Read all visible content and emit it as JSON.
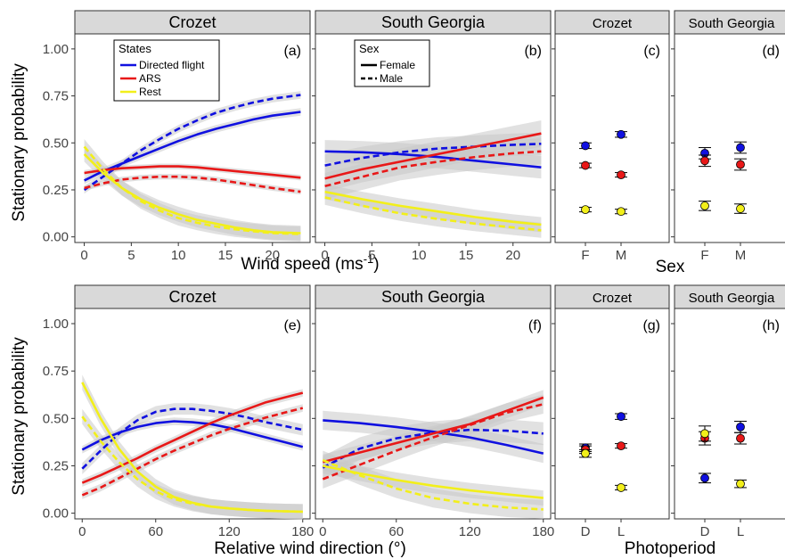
{
  "figure": {
    "ylabel": "Stationary probability",
    "x_title_row1": "Wind speed (ms",
    "x_title_row1_sup": "-1",
    "x_title_row1_close": ")",
    "x_title_row1_discrete": "Sex",
    "x_title_row2": "Relative wind direction (°)",
    "x_title_row2_discrete": "Photoperiod"
  },
  "colors": {
    "directed": "#1010e0",
    "ars": "#e81818",
    "rest": "#f2ef1a",
    "ribbon": "#c8c8c8",
    "strip": "#d9d9d9"
  },
  "legend_states": {
    "title": "States",
    "items": [
      "Directed flight",
      "ARS",
      "Rest"
    ]
  },
  "legend_sex": {
    "title": "Sex",
    "items": [
      "Female",
      "Male"
    ]
  },
  "chart_data": [
    {
      "id": "a",
      "type": "line",
      "strip": "Crozet",
      "panel_label": "(a)",
      "xlabel": "Wind speed (ms-1)",
      "ylabel": "Stationary probability",
      "xlim": [
        -1,
        24
      ],
      "ylim": [
        -0.03,
        1.08
      ],
      "xticks": [
        0,
        5,
        10,
        15,
        20
      ],
      "yticks": [
        0,
        0.25,
        0.5,
        0.75,
        1.0
      ],
      "ytick_labels": [
        "0.00",
        "0.25",
        "0.50",
        "0.75",
        "1.00"
      ],
      "series": [
        {
          "state": "directed",
          "sex": "Female",
          "x": [
            0,
            2,
            4,
            6,
            8,
            10,
            12,
            14,
            16,
            18,
            20,
            23
          ],
          "y": [
            0.3,
            0.35,
            0.39,
            0.43,
            0.47,
            0.51,
            0.545,
            0.575,
            0.6,
            0.625,
            0.645,
            0.665
          ],
          "band": 0.02
        },
        {
          "state": "directed",
          "sex": "Male",
          "x": [
            0,
            2,
            4,
            6,
            8,
            10,
            12,
            14,
            16,
            18,
            20,
            23
          ],
          "y": [
            0.25,
            0.32,
            0.39,
            0.46,
            0.52,
            0.575,
            0.62,
            0.66,
            0.69,
            0.715,
            0.735,
            0.755
          ],
          "band": 0.02
        },
        {
          "state": "ars",
          "sex": "Female",
          "x": [
            0,
            2,
            4,
            6,
            8,
            10,
            12,
            14,
            16,
            18,
            20,
            23
          ],
          "y": [
            0.34,
            0.355,
            0.365,
            0.37,
            0.375,
            0.375,
            0.37,
            0.36,
            0.35,
            0.34,
            0.33,
            0.315
          ],
          "band": 0.015
        },
        {
          "state": "ars",
          "sex": "Male",
          "x": [
            0,
            2,
            4,
            6,
            8,
            10,
            12,
            14,
            16,
            18,
            20,
            23
          ],
          "y": [
            0.26,
            0.285,
            0.305,
            0.315,
            0.32,
            0.32,
            0.315,
            0.305,
            0.29,
            0.275,
            0.26,
            0.24
          ],
          "band": 0.015
        },
        {
          "state": "rest",
          "sex": "Female",
          "x": [
            0,
            2,
            4,
            6,
            8,
            10,
            12,
            14,
            16,
            18,
            20,
            23
          ],
          "y": [
            0.44,
            0.34,
            0.26,
            0.2,
            0.155,
            0.12,
            0.09,
            0.07,
            0.05,
            0.035,
            0.025,
            0.02
          ],
          "band": 0.04
        },
        {
          "state": "rest",
          "sex": "Male",
          "x": [
            0,
            2,
            4,
            6,
            8,
            10,
            12,
            14,
            16,
            18,
            20,
            23
          ],
          "y": [
            0.48,
            0.36,
            0.26,
            0.19,
            0.14,
            0.1,
            0.075,
            0.055,
            0.04,
            0.03,
            0.02,
            0.015
          ],
          "band": 0.04
        }
      ]
    },
    {
      "id": "b",
      "type": "line",
      "strip": "South Georgia",
      "panel_label": "(b)",
      "xlabel": "Wind speed (ms-1)",
      "xlim": [
        -1,
        24
      ],
      "ylim": [
        -0.03,
        1.08
      ],
      "xticks": [
        0,
        5,
        10,
        15,
        20
      ],
      "yticks": [
        0,
        0.25,
        0.5,
        0.75,
        1.0
      ],
      "series": [
        {
          "state": "directed",
          "sex": "Female",
          "x": [
            0,
            4,
            8,
            12,
            16,
            20,
            23
          ],
          "y": [
            0.455,
            0.45,
            0.44,
            0.425,
            0.405,
            0.385,
            0.37
          ],
          "band": 0.06
        },
        {
          "state": "directed",
          "sex": "Male",
          "x": [
            0,
            4,
            8,
            12,
            16,
            20,
            23
          ],
          "y": [
            0.38,
            0.42,
            0.45,
            0.47,
            0.48,
            0.49,
            0.495
          ],
          "band": 0.06
        },
        {
          "state": "ars",
          "sex": "Female",
          "x": [
            0,
            4,
            8,
            12,
            16,
            20,
            23
          ],
          "y": [
            0.31,
            0.36,
            0.4,
            0.44,
            0.48,
            0.52,
            0.55
          ],
          "band": 0.07
        },
        {
          "state": "ars",
          "sex": "Male",
          "x": [
            0,
            4,
            8,
            12,
            16,
            20,
            23
          ],
          "y": [
            0.27,
            0.32,
            0.37,
            0.4,
            0.425,
            0.445,
            0.455
          ],
          "band": 0.07
        },
        {
          "state": "rest",
          "sex": "Female",
          "x": [
            0,
            4,
            8,
            12,
            16,
            20,
            23
          ],
          "y": [
            0.24,
            0.2,
            0.165,
            0.135,
            0.105,
            0.08,
            0.065
          ],
          "band": 0.04
        },
        {
          "state": "rest",
          "sex": "Male",
          "x": [
            0,
            4,
            8,
            12,
            16,
            20,
            23
          ],
          "y": [
            0.21,
            0.165,
            0.125,
            0.095,
            0.07,
            0.05,
            0.035
          ],
          "band": 0.04
        }
      ]
    },
    {
      "id": "c",
      "type": "scatter",
      "strip": "Crozet",
      "panel_label": "(c)",
      "xlabel": "Sex",
      "categories": [
        "F",
        "M"
      ],
      "ylim": [
        -0.03,
        1.08
      ],
      "points": [
        {
          "state": "directed",
          "cat": "F",
          "y": 0.485,
          "err": 0.015
        },
        {
          "state": "directed",
          "cat": "M",
          "y": 0.545,
          "err": 0.015
        },
        {
          "state": "ars",
          "cat": "F",
          "y": 0.38,
          "err": 0.012
        },
        {
          "state": "ars",
          "cat": "M",
          "y": 0.33,
          "err": 0.012
        },
        {
          "state": "rest",
          "cat": "F",
          "y": 0.145,
          "err": 0.012
        },
        {
          "state": "rest",
          "cat": "M",
          "y": 0.135,
          "err": 0.012
        }
      ]
    },
    {
      "id": "d",
      "type": "scatter",
      "strip": "South Georgia",
      "panel_label": "(d)",
      "xlabel": "Sex",
      "categories": [
        "F",
        "M"
      ],
      "ylim": [
        -0.03,
        1.08
      ],
      "points": [
        {
          "state": "directed",
          "cat": "F",
          "y": 0.445,
          "err": 0.03
        },
        {
          "state": "directed",
          "cat": "M",
          "y": 0.475,
          "err": 0.03
        },
        {
          "state": "ars",
          "cat": "F",
          "y": 0.405,
          "err": 0.03
        },
        {
          "state": "ars",
          "cat": "M",
          "y": 0.385,
          "err": 0.03
        },
        {
          "state": "rest",
          "cat": "F",
          "y": 0.165,
          "err": 0.025
        },
        {
          "state": "rest",
          "cat": "M",
          "y": 0.15,
          "err": 0.025
        }
      ]
    },
    {
      "id": "e",
      "type": "line",
      "strip": "Crozet",
      "panel_label": "(e)",
      "xlabel": "Relative wind direction (°)",
      "ylabel": "Stationary probability",
      "xlim": [
        -6,
        186
      ],
      "ylim": [
        -0.03,
        1.08
      ],
      "xticks": [
        0,
        60,
        120,
        180
      ],
      "yticks": [
        0,
        0.25,
        0.5,
        0.75,
        1.0
      ],
      "ytick_labels": [
        "0.00",
        "0.25",
        "0.50",
        "0.75",
        "1.00"
      ],
      "series": [
        {
          "state": "directed",
          "sex": "Female",
          "x": [
            0,
            15,
            30,
            45,
            60,
            75,
            90,
            105,
            120,
            135,
            150,
            165,
            180
          ],
          "y": [
            0.335,
            0.385,
            0.425,
            0.455,
            0.475,
            0.485,
            0.48,
            0.47,
            0.45,
            0.425,
            0.4,
            0.375,
            0.35
          ],
          "band": 0.02
        },
        {
          "state": "directed",
          "sex": "Male",
          "x": [
            0,
            15,
            30,
            45,
            60,
            75,
            90,
            105,
            120,
            135,
            150,
            165,
            180
          ],
          "y": [
            0.235,
            0.33,
            0.42,
            0.49,
            0.535,
            0.55,
            0.55,
            0.54,
            0.525,
            0.505,
            0.48,
            0.46,
            0.44
          ],
          "band": 0.03
        },
        {
          "state": "ars",
          "sex": "Female",
          "x": [
            0,
            15,
            30,
            45,
            60,
            75,
            90,
            105,
            120,
            135,
            150,
            165,
            180
          ],
          "y": [
            0.16,
            0.2,
            0.245,
            0.29,
            0.34,
            0.385,
            0.43,
            0.475,
            0.515,
            0.55,
            0.585,
            0.61,
            0.635
          ],
          "band": 0.02
        },
        {
          "state": "ars",
          "sex": "Male",
          "x": [
            0,
            15,
            30,
            45,
            60,
            75,
            90,
            105,
            120,
            135,
            150,
            165,
            180
          ],
          "y": [
            0.095,
            0.135,
            0.185,
            0.235,
            0.285,
            0.33,
            0.37,
            0.41,
            0.445,
            0.475,
            0.505,
            0.53,
            0.555
          ],
          "band": 0.02
        },
        {
          "state": "rest",
          "sex": "Female",
          "x": [
            0,
            15,
            30,
            45,
            60,
            75,
            90,
            105,
            120,
            135,
            150,
            165,
            180
          ],
          "y": [
            0.69,
            0.5,
            0.34,
            0.22,
            0.14,
            0.085,
            0.055,
            0.035,
            0.025,
            0.018,
            0.013,
            0.01,
            0.008
          ],
          "band": 0.04
        },
        {
          "state": "rest",
          "sex": "Male",
          "x": [
            0,
            15,
            30,
            45,
            60,
            75,
            90,
            105,
            120,
            135,
            150,
            165,
            180
          ],
          "y": [
            0.51,
            0.38,
            0.27,
            0.18,
            0.115,
            0.075,
            0.05,
            0.035,
            0.025,
            0.018,
            0.013,
            0.01,
            0.008
          ],
          "band": 0.04
        }
      ]
    },
    {
      "id": "f",
      "type": "line",
      "strip": "South Georgia",
      "panel_label": "(f)",
      "xlabel": "Relative wind direction (°)",
      "xlim": [
        -6,
        186
      ],
      "ylim": [
        -0.03,
        1.08
      ],
      "xticks": [
        0,
        60,
        120,
        180
      ],
      "yticks": [
        0,
        0.25,
        0.5,
        0.75,
        1.0
      ],
      "series": [
        {
          "state": "directed",
          "sex": "Female",
          "x": [
            0,
            30,
            60,
            90,
            120,
            150,
            180
          ],
          "y": [
            0.49,
            0.475,
            0.455,
            0.43,
            0.4,
            0.36,
            0.315
          ],
          "band": 0.05
        },
        {
          "state": "directed",
          "sex": "Male",
          "x": [
            0,
            30,
            60,
            90,
            120,
            150,
            180
          ],
          "y": [
            0.24,
            0.34,
            0.395,
            0.425,
            0.44,
            0.435,
            0.42
          ],
          "band": 0.06
        },
        {
          "state": "ars",
          "sex": "Female",
          "x": [
            0,
            30,
            60,
            90,
            120,
            150,
            180
          ],
          "y": [
            0.27,
            0.32,
            0.37,
            0.42,
            0.47,
            0.54,
            0.61
          ],
          "band": 0.04
        },
        {
          "state": "ars",
          "sex": "Male",
          "x": [
            0,
            30,
            60,
            90,
            120,
            150,
            180
          ],
          "y": [
            0.18,
            0.255,
            0.33,
            0.4,
            0.465,
            0.53,
            0.575
          ],
          "band": 0.05
        },
        {
          "state": "rest",
          "sex": "Female",
          "x": [
            0,
            30,
            60,
            90,
            120,
            150,
            180
          ],
          "y": [
            0.25,
            0.21,
            0.175,
            0.145,
            0.12,
            0.1,
            0.08
          ],
          "band": 0.04
        },
        {
          "state": "rest",
          "sex": "Male",
          "x": [
            0,
            30,
            60,
            90,
            120,
            150,
            180
          ],
          "y": [
            0.28,
            0.2,
            0.13,
            0.08,
            0.05,
            0.03,
            0.02
          ],
          "band": 0.05
        }
      ]
    },
    {
      "id": "g",
      "type": "scatter",
      "strip": "Crozet",
      "panel_label": "(g)",
      "xlabel": "Photoperiod",
      "categories": [
        "D",
        "L"
      ],
      "ylim": [
        -0.03,
        1.08
      ],
      "points": [
        {
          "state": "directed",
          "cat": "D",
          "y": 0.345,
          "err": 0.02
        },
        {
          "state": "directed",
          "cat": "L",
          "y": 0.51,
          "err": 0.015
        },
        {
          "state": "ars",
          "cat": "D",
          "y": 0.335,
          "err": 0.02
        },
        {
          "state": "ars",
          "cat": "L",
          "y": 0.355,
          "err": 0.012
        },
        {
          "state": "rest",
          "cat": "D",
          "y": 0.315,
          "err": 0.02
        },
        {
          "state": "rest",
          "cat": "L",
          "y": 0.135,
          "err": 0.012
        }
      ]
    },
    {
      "id": "h",
      "type": "scatter",
      "strip": "South Georgia",
      "panel_label": "(h)",
      "xlabel": "Photoperiod",
      "categories": [
        "D",
        "L"
      ],
      "ylim": [
        -0.03,
        1.08
      ],
      "points": [
        {
          "state": "directed",
          "cat": "D",
          "y": 0.185,
          "err": 0.025
        },
        {
          "state": "directed",
          "cat": "L",
          "y": 0.455,
          "err": 0.03
        },
        {
          "state": "ars",
          "cat": "D",
          "y": 0.395,
          "err": 0.035
        },
        {
          "state": "ars",
          "cat": "L",
          "y": 0.395,
          "err": 0.03
        },
        {
          "state": "rest",
          "cat": "D",
          "y": 0.42,
          "err": 0.04
        },
        {
          "state": "rest",
          "cat": "L",
          "y": 0.155,
          "err": 0.02
        }
      ]
    }
  ]
}
